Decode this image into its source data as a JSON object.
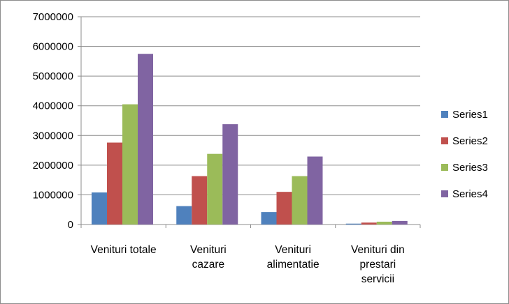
{
  "chart_data": {
    "type": "bar",
    "categories": [
      [
        "Venituri totale"
      ],
      [
        "Venituri",
        "cazare"
      ],
      [
        "Venituri",
        "alimentatie"
      ],
      [
        "Venituri din",
        "prestari",
        "servicii"
      ]
    ],
    "series": [
      {
        "name": "Series1",
        "color": "#4f81bd",
        "values": [
          1080000,
          620000,
          420000,
          30000
        ]
      },
      {
        "name": "Series2",
        "color": "#c0504d",
        "values": [
          2760000,
          1630000,
          1100000,
          65000
        ]
      },
      {
        "name": "Series3",
        "color": "#9bbb59",
        "values": [
          4050000,
          2380000,
          1630000,
          95000
        ]
      },
      {
        "name": "Series4",
        "color": "#8064a2",
        "values": [
          5750000,
          3380000,
          2290000,
          120000
        ]
      }
    ],
    "ylim": [
      0,
      7000000
    ],
    "yticks": [
      "0",
      "1000000",
      "2000000",
      "3000000",
      "4000000",
      "5000000",
      "6000000",
      "7000000"
    ],
    "grid": true,
    "legend_position": "right"
  }
}
